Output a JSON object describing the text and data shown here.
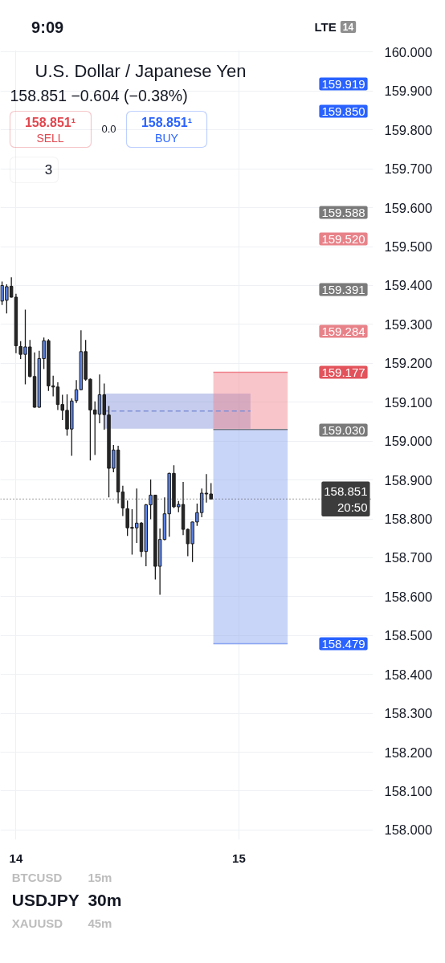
{
  "chart_data": {
    "type": "candlestick",
    "title": "U.S. Dollar / Japanese Yen",
    "subtitle": "158.851 −0.604 (−0.38%)",
    "annotations": [
      "9:09",
      "LTE",
      "14",
      "158.851¹",
      "SELL",
      "0.0",
      "158.851¹",
      "BUY",
      "3",
      "BTCUSD",
      "15m",
      "USDJPY",
      "30m",
      "XAUUSD",
      "45m",
      "159.919",
      "159.850",
      "159.588",
      "159.520",
      "159.391",
      "159.284",
      "159.177",
      "159.030",
      "158.479"
    ],
    "xlim": [
      13.93,
      15.6022
    ],
    "xticks": [
      14,
      15
    ],
    "ylim": [
      157.975,
      160.005
    ],
    "yticks": [
      {
        "value": 158.0,
        "label": "158.000"
      },
      {
        "value": 158.1,
        "label": "158.100"
      },
      {
        "value": 158.2,
        "label": "158.200"
      },
      {
        "value": 158.3,
        "label": "158.300"
      },
      {
        "value": 158.4,
        "label": "158.400"
      },
      {
        "value": 158.5,
        "label": "158.500"
      },
      {
        "value": 158.6,
        "label": "158.600"
      },
      {
        "value": 158.7,
        "label": "158.700"
      },
      {
        "value": 158.8,
        "label": "158.800"
      },
      {
        "value": 158.9,
        "label": "158.900"
      },
      {
        "value": 159.0,
        "label": "159.000"
      },
      {
        "value": 159.1,
        "label": "159.100"
      },
      {
        "value": 159.2,
        "label": "159.200"
      },
      {
        "value": 159.3,
        "label": "159.300"
      },
      {
        "value": 159.4,
        "label": "159.400"
      },
      {
        "value": 159.5,
        "label": "159.500"
      },
      {
        "value": 159.6,
        "label": "159.600"
      },
      {
        "value": 159.7,
        "label": "159.700"
      },
      {
        "value": 159.8,
        "label": "159.800"
      },
      {
        "value": 159.9,
        "label": "159.900"
      },
      {
        "value": 160.0,
        "label": "160.000"
      }
    ],
    "grid": true,
    "series": [
      {
        "type": "line",
        "x": [
          14.3958,
          15.0521
        ],
        "values": [
          159.077,
          159.077
        ],
        "lower": [
          159.032,
          159.032
        ],
        "upper": [
          159.122,
          159.122
        ],
        "color": "#7f8fd6",
        "line_style": "dashed"
      },
      {
        "type": "line",
        "x": [
          14.8854,
          15.2188
        ],
        "values": [
          159.177,
          159.177
        ],
        "lower": [
          159.03,
          159.03
        ],
        "upper": [
          159.177,
          159.177
        ],
        "color": "#f0808a"
      },
      {
        "type": "line",
        "x": [
          14.8854,
          15.2188
        ],
        "values": [
          158.479,
          158.479
        ],
        "lower": [
          158.479,
          158.479
        ],
        "upper": [
          159.03,
          159.03
        ],
        "color": "#87a2f0"
      },
      {
        "type": "line",
        "x": [
          14.8854,
          15.2188
        ],
        "values": [
          159.03,
          159.03
        ],
        "color": "#787b86"
      },
      {
        "x": [
          13.9375,
          13.9583,
          13.9792,
          14.0,
          14.0208,
          14.0417,
          14.0625,
          14.0833,
          14.1042,
          14.125,
          14.1458,
          14.1667,
          14.1875,
          14.2083,
          14.2292,
          14.25,
          14.2708,
          14.2917,
          14.3125,
          14.3333,
          14.3542,
          14.375,
          14.3958,
          14.4167,
          14.4375,
          14.4583,
          14.4792,
          14.5,
          14.5208,
          14.5417,
          14.5625,
          14.5833,
          14.6042,
          14.625,
          14.6458,
          14.6667,
          14.6875,
          14.7083,
          14.7292,
          14.75,
          14.7708,
          14.7917,
          14.8125,
          14.8333,
          14.8542,
          14.875
        ],
        "ohlc": [
          [
            159.36,
            159.41,
            159.35,
            159.4
          ],
          [
            159.362,
            159.403,
            159.328,
            159.397
          ],
          [
            159.398,
            159.421,
            159.369,
            159.37
          ],
          [
            159.37,
            159.379,
            159.226,
            159.245
          ],
          [
            159.243,
            159.257,
            159.211,
            159.223
          ],
          [
            159.223,
            159.338,
            159.146,
            159.242
          ],
          [
            159.242,
            159.26,
            159.164,
            159.166
          ],
          [
            159.166,
            159.228,
            159.086,
            159.087
          ],
          [
            159.087,
            159.232,
            159.086,
            159.212
          ],
          [
            159.212,
            159.266,
            159.185,
            159.258
          ],
          [
            159.258,
            159.262,
            159.129,
            159.142
          ],
          [
            159.142,
            159.168,
            159.115,
            159.139
          ],
          [
            159.139,
            159.151,
            159.08,
            159.094
          ],
          [
            159.094,
            159.119,
            159.054,
            159.079
          ],
          [
            159.079,
            159.12,
            159.014,
            159.031
          ],
          [
            159.031,
            159.11,
            158.962,
            159.103
          ],
          [
            159.104,
            159.157,
            159.098,
            159.132
          ],
          [
            159.132,
            159.285,
            159.131,
            159.23
          ],
          [
            159.23,
            159.26,
            159.155,
            159.159
          ],
          [
            159.159,
            159.161,
            158.95,
            159.08
          ],
          [
            159.08,
            159.102,
            158.964,
            159.069
          ],
          [
            159.069,
            159.171,
            159.046,
            159.119
          ],
          [
            159.119,
            159.148,
            159.029,
            159.068
          ],
          [
            159.067,
            159.09,
            158.855,
            158.93
          ],
          [
            158.93,
            158.99,
            158.92,
            158.977
          ],
          [
            158.977,
            158.988,
            158.84,
            158.869
          ],
          [
            158.869,
            158.885,
            158.807,
            158.828
          ],
          [
            158.826,
            158.847,
            158.756,
            158.777
          ],
          [
            158.778,
            158.825,
            158.708,
            158.776
          ],
          [
            158.777,
            158.878,
            158.738,
            158.789
          ],
          [
            158.789,
            158.792,
            158.702,
            158.716
          ],
          [
            158.716,
            158.838,
            158.678,
            158.836
          ],
          [
            158.836,
            158.901,
            158.799,
            158.861
          ],
          [
            158.861,
            158.862,
            158.644,
            158.678
          ],
          [
            158.678,
            158.775,
            158.605,
            158.747
          ],
          [
            158.747,
            158.855,
            158.745,
            158.813
          ],
          [
            158.813,
            158.919,
            158.754,
            158.917
          ],
          [
            158.917,
            158.938,
            158.828,
            158.831
          ],
          [
            158.831,
            158.846,
            158.817,
            158.837
          ],
          [
            158.837,
            158.895,
            158.758,
            158.773
          ],
          [
            158.773,
            158.775,
            158.704,
            158.736
          ],
          [
            158.736,
            158.793,
            158.689,
            158.792
          ],
          [
            158.792,
            158.839,
            158.782,
            158.816
          ],
          [
            158.816,
            158.878,
            158.804,
            158.866
          ],
          [
            158.866,
            158.915,
            158.842,
            158.864
          ],
          [
            158.864,
            158.892,
            158.851,
            158.851
          ]
        ],
        "colors": [
          "#5b83e8",
          "#5b83e8",
          "#262626",
          "#262626",
          "#262626",
          "#5b83e8",
          "#262626",
          "#262626",
          "#5b83e8",
          "#5b83e8",
          "#262626",
          "#262626",
          "#262626",
          "#262626",
          "#262626",
          "#5b83e8",
          "#5b83e8",
          "#5b83e8",
          "#262626",
          "#262626",
          "#262626",
          "#5b83e8",
          "#262626",
          "#262626",
          "#5b83e8",
          "#262626",
          "#262626",
          "#262626",
          "#262626",
          "#5b83e8",
          "#262626",
          "#5b83e8",
          "#5b83e8",
          "#262626",
          "#5b83e8",
          "#5b83e8",
          "#5b83e8",
          "#262626",
          "#5b83e8",
          "#262626",
          "#262626",
          "#5b83e8",
          "#5b83e8",
          "#5b83e8",
          "#262626",
          "#262626"
        ]
      }
    ],
    "ref_lines": [
      {
        "axis": "y",
        "value": 158.851,
        "label": "158.851\n20:50",
        "color": "#3c3c3c",
        "line_style": "dotted"
      }
    ]
  }
}
